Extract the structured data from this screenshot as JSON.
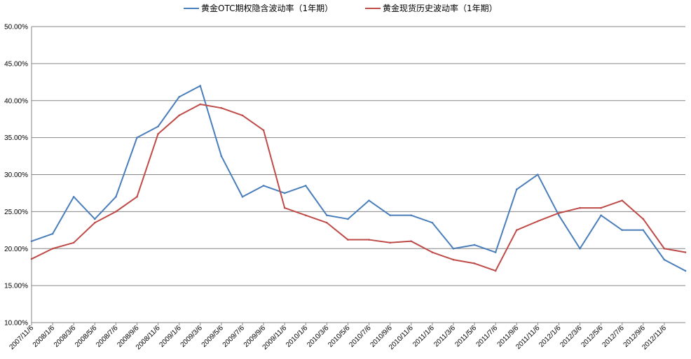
{
  "chart_data": {
    "type": "line",
    "title": "",
    "xlabel": "",
    "ylabel": "",
    "ylim": [
      0.1,
      0.5
    ],
    "y_ticks": [
      "10.00%",
      "15.00%",
      "20.00%",
      "25.00%",
      "30.00%",
      "35.00%",
      "40.00%",
      "45.00%",
      "50.00%"
    ],
    "y_tick_values": [
      0.1,
      0.15,
      0.2,
      0.25,
      0.3,
      0.35,
      0.4,
      0.45,
      0.5
    ],
    "grid": "horizontal",
    "legend_position": "top",
    "x": [
      "2007/11/6",
      "2008/1/6",
      "2008/3/6",
      "2008/5/6",
      "2008/7/6",
      "2008/9/6",
      "2008/11/6",
      "2009/1/6",
      "2009/3/6",
      "2009/5/6",
      "2009/7/6",
      "2009/9/6",
      "2009/11/6",
      "2010/1/6",
      "2010/3/6",
      "2010/5/6",
      "2010/7/6",
      "2010/9/6",
      "2010/11/6",
      "2011/1/6",
      "2011/3/6",
      "2011/5/6",
      "2011/7/6",
      "2011/9/6",
      "2011/11/6",
      "2012/1/6",
      "2012/3/6",
      "2012/5/6",
      "2012/7/6",
      "2012/9/6",
      "2012/11/6",
      "2012/12/20"
    ],
    "x_ticks": [
      "2007/11/6",
      "2008/1/6",
      "2008/3/6",
      "2008/5/6",
      "2008/7/6",
      "2008/9/6",
      "2008/11/6",
      "2009/1/6",
      "2009/3/6",
      "2009/5/6",
      "2009/7/6",
      "2009/9/6",
      "2009/11/6",
      "2010/1/6",
      "2010/3/6",
      "2010/5/6",
      "2010/7/6",
      "2010/9/6",
      "2010/11/6",
      "2011/1/6",
      "2011/3/6",
      "2011/5/6",
      "2011/7/6",
      "2011/9/6",
      "2011/11/6",
      "2012/1/6",
      "2012/3/6",
      "2012/5/6",
      "2012/7/6",
      "2012/9/6",
      "2012/11/6"
    ],
    "series": [
      {
        "name": "黄金OTC期权隐含波动率（1年期）",
        "color": "#4a7ebb",
        "values": [
          0.21,
          0.22,
          0.27,
          0.24,
          0.27,
          0.35,
          0.365,
          0.405,
          0.42,
          0.325,
          0.27,
          0.285,
          0.275,
          0.285,
          0.245,
          0.24,
          0.265,
          0.245,
          0.245,
          0.235,
          0.2,
          0.205,
          0.195,
          0.28,
          0.3,
          0.245,
          0.2,
          0.245,
          0.225,
          0.225,
          0.185,
          0.17
        ]
      },
      {
        "name": "黄金现货历史波动率（1年期）",
        "color": "#be4b48",
        "values": [
          0.186,
          0.2,
          0.208,
          0.235,
          0.25,
          0.27,
          0.355,
          0.38,
          0.395,
          0.39,
          0.38,
          0.36,
          0.255,
          0.245,
          0.235,
          0.212,
          0.212,
          0.208,
          0.21,
          0.195,
          0.185,
          0.18,
          0.17,
          0.225,
          0.237,
          0.248,
          0.255,
          0.255,
          0.265,
          0.24,
          0.2,
          0.195
        ]
      }
    ]
  }
}
